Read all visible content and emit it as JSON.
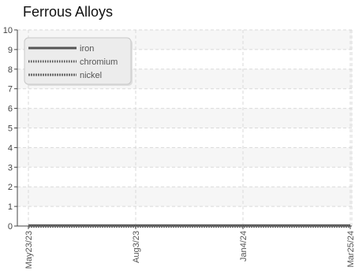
{
  "chart_data": {
    "type": "line",
    "title": "Ferrous Alloys",
    "xlabel": "",
    "ylabel": "",
    "x": [
      "May23/23",
      "Aug3/23",
      "Jan4/24",
      "Mar25/24"
    ],
    "xticks": [
      "May23/23",
      "Aug3/23",
      "Jan4/24",
      "Mar25/24"
    ],
    "ylim": [
      0,
      10
    ],
    "yticks": [
      "0",
      "1",
      "2",
      "3",
      "4",
      "5",
      "6",
      "7",
      "8",
      "9",
      "10"
    ],
    "grid": true,
    "legend_position": "top-left",
    "series": [
      {
        "name": "iron",
        "values": [
          0,
          0,
          0,
          0
        ],
        "color": "#555555",
        "style": "solid"
      },
      {
        "name": "chromium",
        "values": [
          0,
          0,
          0,
          0
        ],
        "color": "#555555",
        "style": "dotted"
      },
      {
        "name": "nickel",
        "values": [
          0,
          0,
          0,
          0
        ],
        "color": "#6a6a6a",
        "style": "dashed"
      }
    ]
  }
}
